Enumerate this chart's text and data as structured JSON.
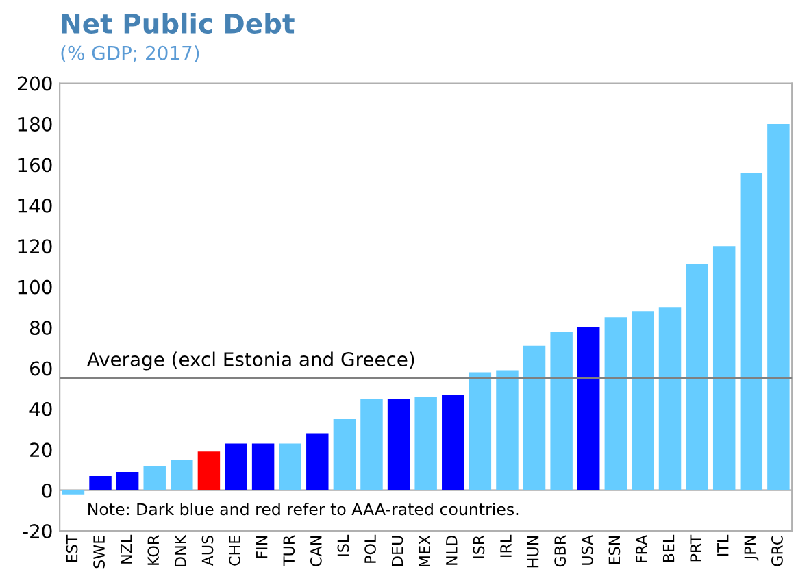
{
  "chart_data": {
    "type": "bar",
    "title": "Net Public Debt",
    "subtitle": "(% GDP; 2017)",
    "categories": [
      "EST",
      "SWE",
      "NZL",
      "KOR",
      "DNK",
      "AUS",
      "CHE",
      "FIN",
      "TUR",
      "CAN",
      "ISL",
      "POL",
      "DEU",
      "MEX",
      "NLD",
      "ISR",
      "IRL",
      "HUN",
      "GBR",
      "USA",
      "ESN",
      "FRA",
      "BEL",
      "PRT",
      "ITL",
      "JPN",
      "GRC"
    ],
    "values": [
      -2,
      7,
      9,
      12,
      15,
      19,
      23,
      23,
      23,
      28,
      35,
      45,
      45,
      46,
      47,
      58,
      59,
      71,
      78,
      80,
      85,
      88,
      90,
      111,
      120,
      156,
      180
    ],
    "colors": [
      "#66ccff",
      "#0000ff",
      "#0000ff",
      "#66ccff",
      "#66ccff",
      "#ff0000",
      "#0000ff",
      "#0000ff",
      "#66ccff",
      "#0000ff",
      "#66ccff",
      "#66ccff",
      "#0000ff",
      "#66ccff",
      "#0000ff",
      "#66ccff",
      "#66ccff",
      "#66ccff",
      "#66ccff",
      "#0000ff",
      "#66ccff",
      "#66ccff",
      "#66ccff",
      "#66ccff",
      "#66ccff",
      "#66ccff",
      "#66ccff"
    ],
    "ylim": [
      -20,
      200
    ],
    "yticks": [
      -20,
      0,
      20,
      40,
      60,
      80,
      100,
      120,
      140,
      160,
      180,
      200
    ],
    "ref_lines": [
      {
        "axis": "y",
        "value": 55,
        "label": "Average (excl Estonia and Greece)",
        "color": "#808080"
      }
    ],
    "annotations": [
      "Note: Dark blue and red refer to AAA-rated countries."
    ],
    "legend": false
  }
}
